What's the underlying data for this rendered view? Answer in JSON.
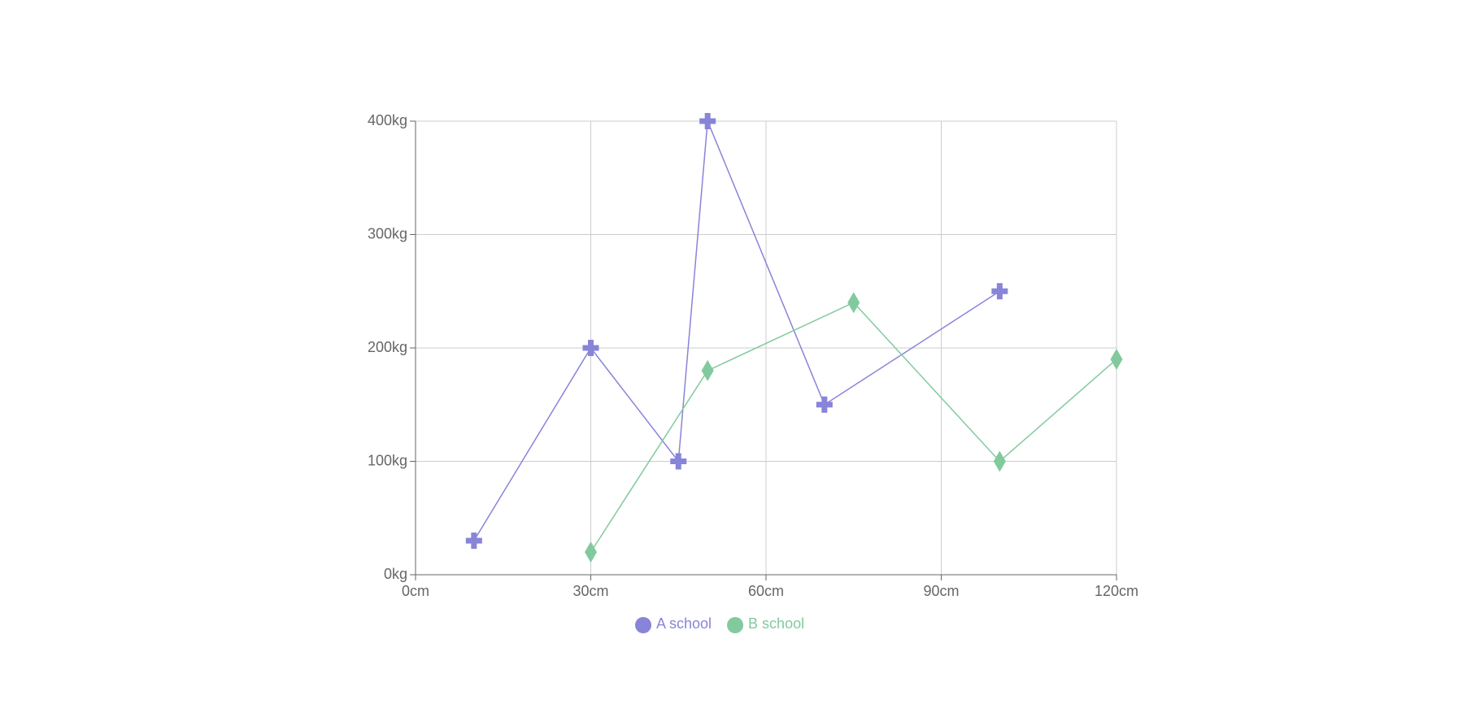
{
  "chart_data": {
    "type": "line",
    "series": [
      {
        "name": "A school",
        "color": "#8884d8",
        "marker": "cross",
        "x": [
          10,
          30,
          45,
          50,
          70,
          100
        ],
        "values": [
          30,
          200,
          100,
          400,
          150,
          250
        ]
      },
      {
        "name": "B school",
        "color": "#82ca9d",
        "marker": "diamond",
        "x": [
          30,
          50,
          75,
          100,
          120
        ],
        "values": [
          20,
          180,
          240,
          100,
          190
        ]
      }
    ],
    "xlim": [
      0,
      120
    ],
    "xticks": [
      {
        "value": 0,
        "label": "0cm"
      },
      {
        "value": 30,
        "label": "30cm"
      },
      {
        "value": 60,
        "label": "60cm"
      },
      {
        "value": 90,
        "label": "90cm"
      },
      {
        "value": 120,
        "label": "120cm"
      }
    ],
    "ylim": [
      0,
      400
    ],
    "yticks": [
      {
        "value": 0,
        "label": "0kg"
      },
      {
        "value": 100,
        "label": "100kg"
      },
      {
        "value": 200,
        "label": "200kg"
      },
      {
        "value": 300,
        "label": "300kg"
      },
      {
        "value": 400,
        "label": "400kg"
      }
    ],
    "grid": true
  }
}
